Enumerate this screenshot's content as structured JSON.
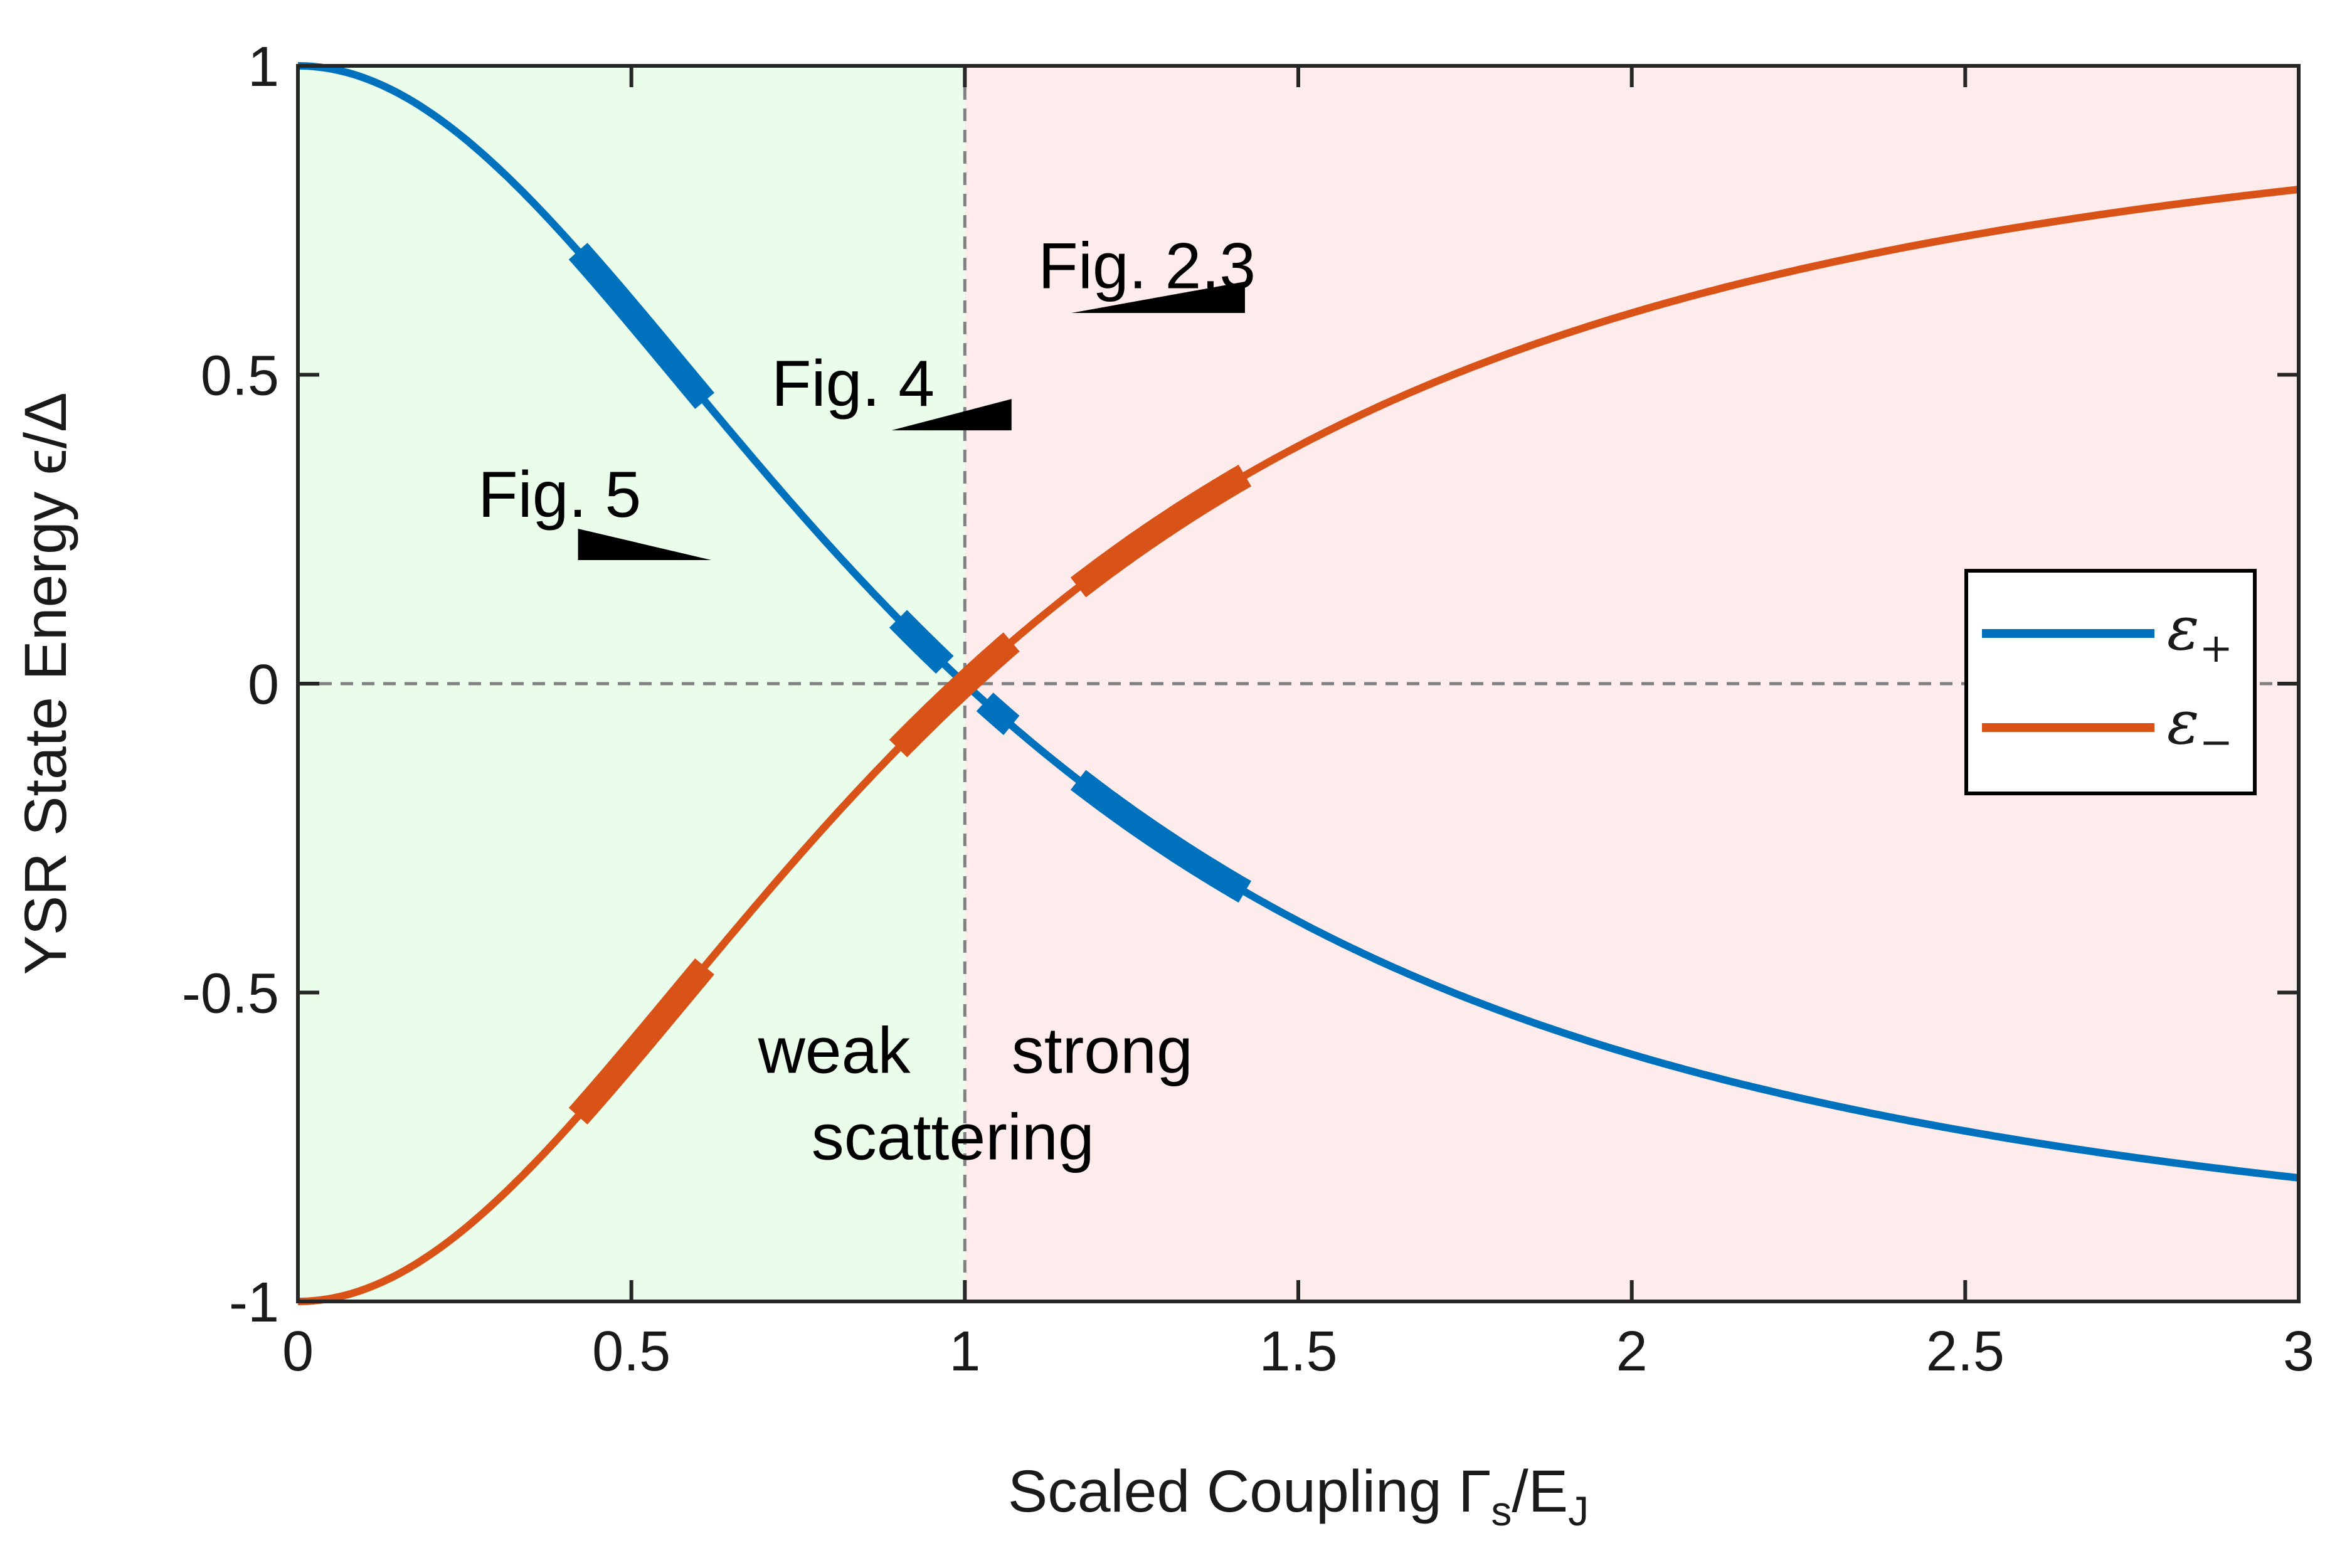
{
  "chart_data": {
    "type": "line",
    "xlabel": "Scaled Coupling Γ",
    "xlabel_sub_s": "s",
    "xlabel_sep": "/E",
    "xlabel_sub_j": "J",
    "ylabel": "YSR State Energy ϵ/Δ",
    "xlim": [
      0,
      3
    ],
    "ylim": [
      -1,
      1
    ],
    "x_ticks": [
      0,
      0.5,
      1,
      1.5,
      2,
      2.5,
      3
    ],
    "x_tick_labels": [
      "0",
      "0.5",
      "1",
      "1.5",
      "2",
      "2.5",
      "3"
    ],
    "y_ticks": [
      -1,
      -0.5,
      0,
      0.5,
      1
    ],
    "y_tick_labels": [
      "-1",
      "-0.5",
      "0",
      "0.5",
      "1"
    ],
    "grid": false,
    "reference_lines": [
      {
        "orientation": "vertical",
        "value": 1,
        "style": "dashed",
        "color": "#808080"
      },
      {
        "orientation": "horizontal",
        "value": 0,
        "style": "dashed",
        "color": "#808080"
      }
    ],
    "regions": [
      {
        "x_range": [
          0,
          1
        ],
        "color": "#eafdea"
      },
      {
        "x_range": [
          1,
          3
        ],
        "color": "#fdeceb"
      }
    ],
    "series": [
      {
        "name": "ε",
        "name_sub": "+",
        "color": "#0072bd",
        "formula": "(1 - x^2) / (1 + x^2)",
        "x": [
          0,
          0.25,
          0.5,
          0.75,
          1.0,
          1.25,
          1.5,
          1.75,
          2.0,
          2.25,
          2.5,
          2.75,
          3.0
        ],
        "values": [
          1.0,
          0.882,
          0.6,
          0.28,
          0.0,
          -0.22,
          -0.385,
          -0.508,
          -0.6,
          -0.67,
          -0.724,
          -0.766,
          -0.8
        ],
        "highlighted_x_ranges": [
          [
            0.42,
            0.61
          ],
          [
            0.9,
            0.97
          ],
          [
            1.03,
            1.07
          ],
          [
            1.17,
            1.42
          ]
        ]
      },
      {
        "name": "ε",
        "name_sub": "−",
        "color": "#d95319",
        "formula": "-(1 - x^2) / (1 + x^2)",
        "x": [
          0,
          0.25,
          0.5,
          0.75,
          1.0,
          1.25,
          1.5,
          1.75,
          2.0,
          2.25,
          2.5,
          2.75,
          3.0
        ],
        "values": [
          -1.0,
          -0.882,
          -0.6,
          -0.28,
          0.0,
          0.22,
          0.385,
          0.508,
          0.6,
          0.67,
          0.724,
          0.766,
          0.8
        ],
        "highlighted_x_ranges": [
          [
            0.42,
            0.61
          ],
          [
            0.9,
            1.07
          ],
          [
            1.17,
            1.42
          ]
        ]
      }
    ],
    "legend": {
      "placement": "right"
    },
    "annotations": [
      {
        "text": "Fig. 5",
        "x": 0.27,
        "y": 0.27
      },
      {
        "text": "Fig. 4",
        "x": 0.71,
        "y": 0.45
      },
      {
        "text": "Fig. 2,3",
        "x": 1.11,
        "y": 0.64
      },
      {
        "text": "weak",
        "x": 0.69,
        "y": -0.63
      },
      {
        "text": "strong",
        "x": 1.07,
        "y": -0.63
      },
      {
        "text": "scattering",
        "x": 0.77,
        "y": -0.77
      }
    ],
    "markers": [
      {
        "shape": "wedge",
        "x_start": 0.42,
        "x_end": 0.62,
        "y": 0.2,
        "widening": "left"
      },
      {
        "shape": "wedge",
        "x_start": 0.89,
        "x_end": 1.07,
        "y": 0.41,
        "widening": "right"
      },
      {
        "shape": "wedge",
        "x_start": 1.16,
        "x_end": 1.42,
        "y": 0.6,
        "widening": "right"
      }
    ]
  }
}
